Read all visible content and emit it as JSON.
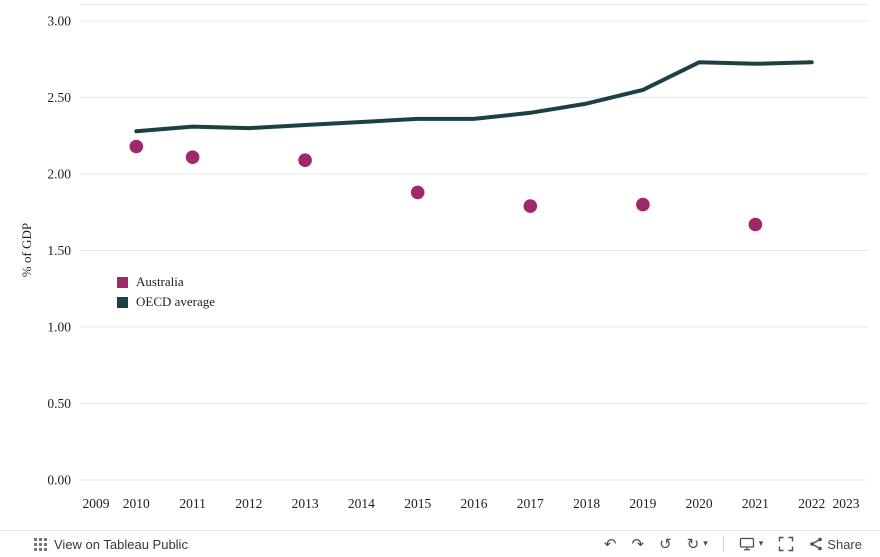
{
  "chart_data": {
    "type": "line",
    "title": "",
    "xlabel": "",
    "ylabel": "% of GDP",
    "ylim": [
      0,
      3
    ],
    "xlim": [
      2009,
      2023
    ],
    "y_ticks": [
      "0.00",
      "0.50",
      "1.00",
      "1.50",
      "2.00",
      "2.50",
      "3.00"
    ],
    "x_ticks": [
      2009,
      2010,
      2011,
      2012,
      2013,
      2014,
      2015,
      2016,
      2017,
      2018,
      2019,
      2020,
      2021,
      2022,
      2023
    ],
    "grid": true,
    "legend_position": "inside-left",
    "series": [
      {
        "name": "Australia",
        "mark": "circle",
        "color": "#a02768",
        "points": [
          [
            2010,
            2.18
          ],
          [
            2011,
            2.11
          ],
          [
            2013,
            2.09
          ],
          [
            2015,
            1.88
          ],
          [
            2017,
            1.79
          ],
          [
            2019,
            1.8
          ],
          [
            2021,
            1.67
          ]
        ]
      },
      {
        "name": "OECD average",
        "mark": "line",
        "color": "#1d4045",
        "points": [
          [
            2010,
            2.28
          ],
          [
            2011,
            2.31
          ],
          [
            2012,
            2.3
          ],
          [
            2013,
            2.32
          ],
          [
            2014,
            2.34
          ],
          [
            2015,
            2.36
          ],
          [
            2016,
            2.36
          ],
          [
            2017,
            2.4
          ],
          [
            2018,
            2.46
          ],
          [
            2019,
            2.55
          ],
          [
            2020,
            2.73
          ],
          [
            2021,
            2.72
          ],
          [
            2022,
            2.73
          ]
        ]
      }
    ]
  },
  "footer": {
    "view_label": "View on Tableau Public",
    "share_label": "Share"
  }
}
